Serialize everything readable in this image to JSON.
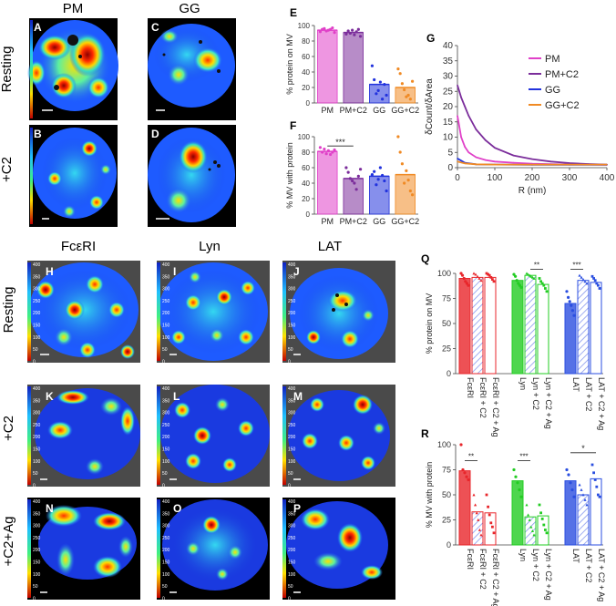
{
  "image_panels": {
    "col_headers_top": [
      "PM",
      "GG"
    ],
    "row_labels_top": [
      "Resting",
      "+C2"
    ],
    "col_headers_bottom": [
      "FcεRI",
      "Lyn",
      "LAT"
    ],
    "row_labels_bottom": [
      "Resting",
      "+C2",
      "+C2+Ag"
    ],
    "letters": [
      "A",
      "B",
      "C",
      "D",
      "H",
      "I",
      "J",
      "K",
      "L",
      "M",
      "N",
      "O",
      "P"
    ],
    "colorbar_ticks": [
      "400",
      "350",
      "300",
      "250",
      "200",
      "150",
      "100",
      "50",
      "0"
    ]
  },
  "colors": {
    "PM": "#e040c8",
    "PM+C2": "#7b2d9b",
    "GG": "#2233dd",
    "GG+C2": "#f08a24",
    "FcεRI": "#e8262b",
    "Lyn": "#22cc22",
    "LAT": "#2a4ee0"
  },
  "chart_data": [
    {
      "panel": "E",
      "type": "bar",
      "ylabel": "% protein on MV",
      "categories": [
        "PM",
        "PM+C2",
        "GG",
        "GG+C2"
      ],
      "values": [
        94,
        91,
        24,
        20
      ],
      "ylim": [
        0,
        100
      ],
      "yticks": [
        "0",
        "20",
        "40",
        "60",
        "80",
        "100"
      ],
      "points": [
        [
          92,
          95,
          96,
          93,
          94,
          95,
          97,
          91
        ],
        [
          89,
          93,
          90,
          94,
          88,
          92,
          95,
          86
        ],
        [
          48,
          30,
          12,
          16,
          27,
          5,
          24,
          10
        ],
        [
          44,
          38,
          25,
          17,
          8,
          10,
          5,
          28
        ]
      ]
    },
    {
      "panel": "F",
      "type": "bar",
      "ylabel": "% MV with protein",
      "categories": [
        "PM",
        "PM+C2",
        "GG",
        "GG+C2"
      ],
      "values": [
        81,
        46,
        49,
        51
      ],
      "ylim": [
        0,
        100
      ],
      "yticks": [
        "0",
        "20",
        "40",
        "60",
        "80",
        "100"
      ],
      "annotation": "***",
      "points": [
        [
          86,
          80,
          84,
          78,
          82,
          77,
          80,
          83
        ],
        [
          60,
          54,
          46,
          43,
          40,
          32,
          49,
          58
        ],
        [
          51,
          55,
          38,
          45,
          60,
          50,
          43,
          30
        ],
        [
          100,
          80,
          65,
          40,
          56,
          44,
          30,
          25
        ]
      ]
    },
    {
      "panel": "G",
      "type": "line",
      "xlabel": "R (nm)",
      "ylabel": "δCount/δArea",
      "xlim": [
        0,
        400
      ],
      "ylim": [
        0,
        40
      ],
      "xticks": [
        "0",
        "100",
        "200",
        "300",
        "400"
      ],
      "yticks": [
        "0",
        "5",
        "10",
        "15",
        "20",
        "25",
        "30",
        "35",
        "40"
      ],
      "legend": [
        "PM",
        "PM+C2",
        "GG",
        "GG+C2"
      ],
      "series": [
        {
          "name": "PM",
          "x": [
            0,
            10,
            20,
            30,
            50,
            75,
            100,
            150,
            200,
            250,
            300,
            350,
            400
          ],
          "y": [
            17,
            10,
            6.8,
            5,
            3.4,
            2.5,
            2,
            1.6,
            1.3,
            1.15,
            1.05,
            1,
            0.95
          ]
        },
        {
          "name": "PM+C2",
          "x": [
            0,
            10,
            20,
            30,
            50,
            75,
            100,
            150,
            200,
            250,
            300,
            350,
            400
          ],
          "y": [
            27,
            23,
            20,
            17,
            12.5,
            9,
            6.5,
            4,
            2.8,
            2,
            1.5,
            1.2,
            1
          ]
        },
        {
          "name": "GG",
          "x": [
            0,
            20,
            50,
            100,
            200,
            300,
            400
          ],
          "y": [
            3,
            1.6,
            1.1,
            1,
            0.95,
            0.95,
            0.95
          ]
        },
        {
          "name": "GG+C2",
          "x": [
            0,
            20,
            50,
            100,
            200,
            300,
            400
          ],
          "y": [
            2,
            1.4,
            1.1,
            1,
            1,
            1,
            1
          ]
        }
      ]
    },
    {
      "panel": "Q",
      "type": "bar",
      "ylabel": "% protein on MV",
      "categories": [
        "FcεRI",
        "FcεRI + C2",
        "FcεRI + C2 + Ag",
        "Lyn",
        "Lyn + C2",
        "Lyn + C2 + Ag",
        "LAT",
        "LAT + C2",
        "LAT + C2 + Ag"
      ],
      "values": [
        95,
        96,
        96,
        93,
        98,
        89,
        70,
        93,
        91
      ],
      "ylim": [
        0,
        100
      ],
      "yticks": [
        "0",
        "25",
        "50",
        "75",
        "100"
      ],
      "annotations": [
        "**",
        "***"
      ],
      "points": [
        [
          100,
          98,
          95,
          92,
          90,
          88
        ],
        [
          100,
          99,
          97,
          95,
          93
        ],
        [
          100,
          99,
          98,
          96,
          94,
          92
        ],
        [
          99,
          97,
          93,
          90,
          88,
          86
        ],
        [
          100,
          99,
          98,
          97,
          96,
          95
        ],
        [
          95,
          92,
          90,
          88,
          85,
          82
        ],
        [
          82,
          76,
          72,
          68,
          63,
          58
        ],
        [
          98,
          96,
          94,
          92,
          90
        ],
        [
          97,
          95,
          93,
          90,
          88,
          85
        ]
      ]
    },
    {
      "panel": "R",
      "type": "bar",
      "ylabel": "% MV with protein",
      "categories": [
        "FcεRI",
        "FcεRI + C2",
        "FcεRI + C2 + Ag",
        "Lyn",
        "Lyn + C2",
        "Lyn + C2 + Ag",
        "LAT",
        "LAT + C2",
        "LAT + C2 + Ag"
      ],
      "values": [
        74,
        33,
        32,
        64,
        28,
        29,
        64,
        50,
        66
      ],
      "ylim": [
        0,
        100
      ],
      "yticks": [
        "0",
        "25",
        "50",
        "75",
        "100"
      ],
      "annotations": [
        "**",
        "***",
        "*"
      ],
      "points": [
        [
          100,
          75,
          72,
          68,
          65
        ],
        [
          50,
          40,
          32,
          25,
          15,
          10
        ],
        [
          50,
          38,
          30,
          22,
          18,
          12
        ],
        [
          75,
          68,
          62,
          55,
          48
        ],
        [
          40,
          30,
          25,
          18,
          14,
          10
        ],
        [
          40,
          32,
          26,
          20,
          15,
          12
        ],
        [
          75,
          70,
          62,
          55,
          48
        ],
        [
          60,
          55,
          50,
          45,
          40
        ],
        [
          80,
          72,
          65,
          58,
          50,
          48
        ]
      ]
    }
  ]
}
